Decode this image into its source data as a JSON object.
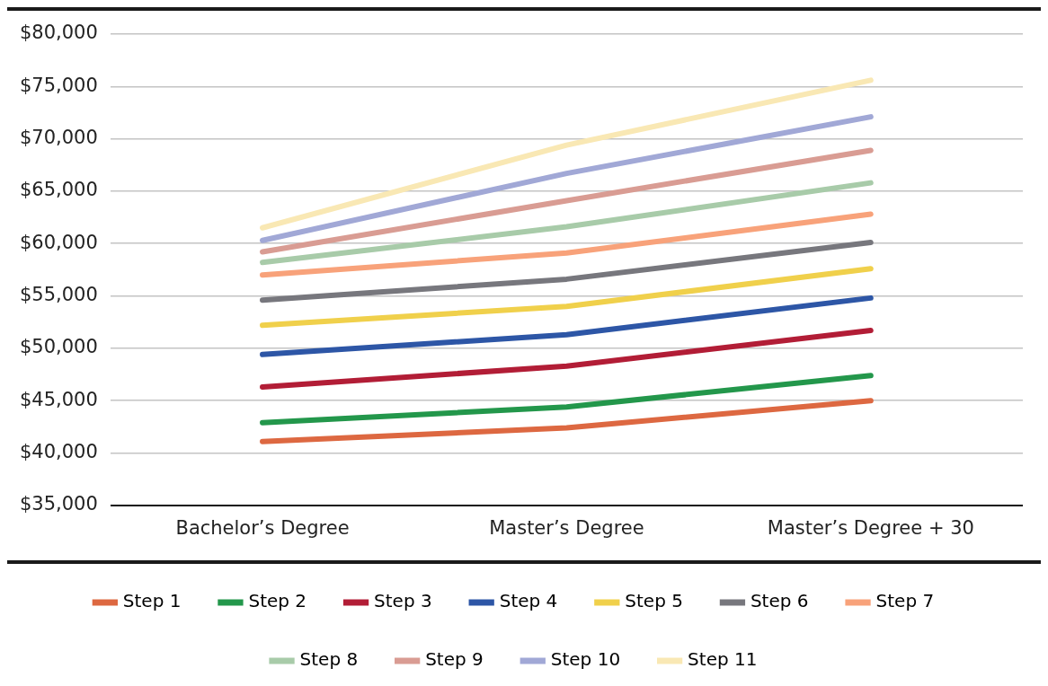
{
  "chart_data": {
    "type": "line",
    "categories": [
      "Bachelor’s Degree",
      "Master’s Degree",
      "Master’s Degree + 30"
    ],
    "series": [
      {
        "name": "Step 1",
        "color": "#dd6841",
        "values": [
          41100,
          42400,
          45000
        ]
      },
      {
        "name": "Step 2",
        "color": "#23974b",
        "values": [
          42900,
          44400,
          47400
        ]
      },
      {
        "name": "Step 3",
        "color": "#b21d36",
        "values": [
          46300,
          48300,
          51700
        ]
      },
      {
        "name": "Step 4",
        "color": "#2d56a6",
        "values": [
          49400,
          51300,
          54800
        ]
      },
      {
        "name": "Step 5",
        "color": "#f0d04b",
        "values": [
          52200,
          54000,
          57600
        ]
      },
      {
        "name": "Step 6",
        "color": "#77777d",
        "values": [
          54600,
          56600,
          60100
        ]
      },
      {
        "name": "Step 7",
        "color": "#f8a27a",
        "values": [
          57000,
          59100,
          62800
        ]
      },
      {
        "name": "Step 8",
        "color": "#a8cba9",
        "values": [
          58200,
          61600,
          65800
        ]
      },
      {
        "name": "Step 9",
        "color": "#d99c93",
        "values": [
          59200,
          64100,
          68900
        ]
      },
      {
        "name": "Step 10",
        "color": "#a1a8d6",
        "values": [
          60300,
          66700,
          72100
        ]
      },
      {
        "name": "Step 11",
        "color": "#f9e8b4",
        "values": [
          61500,
          69400,
          75600
        ]
      }
    ],
    "ylim": [
      35000,
      80000
    ],
    "yticks": [
      {
        "value": 35000,
        "label": "$35,000"
      },
      {
        "value": 40000,
        "label": "$40,000"
      },
      {
        "value": 45000,
        "label": "$45,000"
      },
      {
        "value": 50000,
        "label": "$50,000"
      },
      {
        "value": 55000,
        "label": "$55,000"
      },
      {
        "value": 60000,
        "label": "$60,000"
      },
      {
        "value": 65000,
        "label": "$65,000"
      },
      {
        "value": 70000,
        "label": "$70,000"
      },
      {
        "value": 75000,
        "label": "$75,000"
      },
      {
        "value": 80000,
        "label": "$80,000"
      }
    ],
    "grid": "y",
    "legend": "bottom",
    "marker": "none",
    "line_style": "solid"
  }
}
